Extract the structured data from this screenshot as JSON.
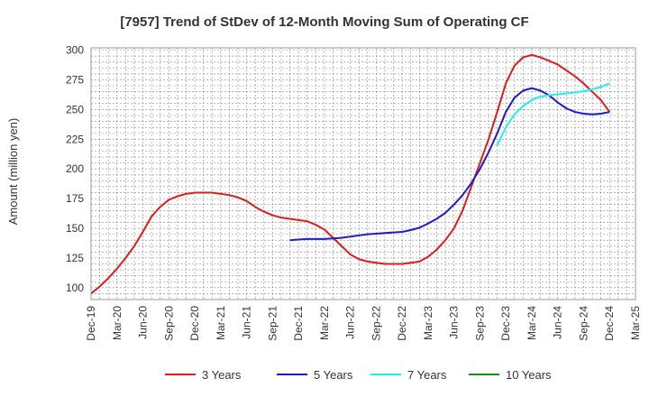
{
  "chart_data": {
    "type": "line",
    "title": "[7957]  Trend of StDev of 12-Month Moving Sum of Operating CF",
    "ylabel": "Amount (million yen)",
    "xlabel": "",
    "ylim": [
      90,
      302
    ],
    "yticks": [
      100,
      125,
      150,
      175,
      200,
      225,
      250,
      275,
      300
    ],
    "xlim": [
      "2019-12",
      "2025-03"
    ],
    "xticks": [
      "Dec-19",
      "Mar-20",
      "Jun-20",
      "Sep-20",
      "Dec-20",
      "Mar-21",
      "Jun-21",
      "Sep-21",
      "Dec-21",
      "Mar-22",
      "Jun-22",
      "Sep-22",
      "Dec-22",
      "Mar-23",
      "Jun-23",
      "Sep-23",
      "Dec-23",
      "Mar-24",
      "Jun-24",
      "Sep-24",
      "Dec-24",
      "Mar-25"
    ],
    "grid": true,
    "legend_position": "bottom",
    "series": [
      {
        "name": "3 Years",
        "color": "#dd1c1c",
        "points": [
          [
            "2019-12",
            95
          ],
          [
            "2020-01",
            101
          ],
          [
            "2020-02",
            108
          ],
          [
            "2020-03",
            116
          ],
          [
            "2020-04",
            125
          ],
          [
            "2020-05",
            135
          ],
          [
            "2020-06",
            147
          ],
          [
            "2020-07",
            160
          ],
          [
            "2020-08",
            168
          ],
          [
            "2020-09",
            174
          ],
          [
            "2020-10",
            177
          ],
          [
            "2020-11",
            179
          ],
          [
            "2020-12",
            180
          ],
          [
            "2021-01",
            180
          ],
          [
            "2021-02",
            180
          ],
          [
            "2021-03",
            179
          ],
          [
            "2021-04",
            178
          ],
          [
            "2021-05",
            176
          ],
          [
            "2021-06",
            173
          ],
          [
            "2021-07",
            168
          ],
          [
            "2021-08",
            164
          ],
          [
            "2021-09",
            161
          ],
          [
            "2021-10",
            159
          ],
          [
            "2021-11",
            158
          ],
          [
            "2021-12",
            157
          ],
          [
            "2022-01",
            156
          ],
          [
            "2022-02",
            153
          ],
          [
            "2022-03",
            149
          ],
          [
            "2022-04",
            142
          ],
          [
            "2022-05",
            135
          ],
          [
            "2022-06",
            128
          ],
          [
            "2022-07",
            124
          ],
          [
            "2022-08",
            122
          ],
          [
            "2022-09",
            121
          ],
          [
            "2022-10",
            120
          ],
          [
            "2022-11",
            120
          ],
          [
            "2022-12",
            120
          ],
          [
            "2023-01",
            121
          ],
          [
            "2023-02",
            122
          ],
          [
            "2023-03",
            126
          ],
          [
            "2023-04",
            132
          ],
          [
            "2023-05",
            140
          ],
          [
            "2023-06",
            150
          ],
          [
            "2023-07",
            165
          ],
          [
            "2023-08",
            185
          ],
          [
            "2023-09",
            205
          ],
          [
            "2023-10",
            225
          ],
          [
            "2023-11",
            248
          ],
          [
            "2023-12",
            272
          ],
          [
            "2024-01",
            287
          ],
          [
            "2024-02",
            294
          ],
          [
            "2024-03",
            296
          ],
          [
            "2024-04",
            294
          ],
          [
            "2024-05",
            291
          ],
          [
            "2024-06",
            288
          ],
          [
            "2024-07",
            283
          ],
          [
            "2024-08",
            278
          ],
          [
            "2024-09",
            272
          ],
          [
            "2024-10",
            265
          ],
          [
            "2024-11",
            258
          ],
          [
            "2024-12",
            248
          ]
        ]
      },
      {
        "name": "5 Years",
        "color": "#1c1cc8",
        "points": [
          [
            "2021-11",
            140
          ],
          [
            "2021-12",
            140.5
          ],
          [
            "2022-01",
            141
          ],
          [
            "2022-02",
            141
          ],
          [
            "2022-03",
            141
          ],
          [
            "2022-04",
            141.5
          ],
          [
            "2022-05",
            142
          ],
          [
            "2022-06",
            143
          ],
          [
            "2022-07",
            144
          ],
          [
            "2022-08",
            145
          ],
          [
            "2022-09",
            145.5
          ],
          [
            "2022-10",
            146
          ],
          [
            "2022-11",
            146.5
          ],
          [
            "2022-12",
            147
          ],
          [
            "2023-01",
            148.5
          ],
          [
            "2023-02",
            150.5
          ],
          [
            "2023-03",
            154
          ],
          [
            "2023-04",
            158
          ],
          [
            "2023-05",
            163
          ],
          [
            "2023-06",
            170
          ],
          [
            "2023-07",
            178
          ],
          [
            "2023-08",
            188
          ],
          [
            "2023-09",
            200
          ],
          [
            "2023-10",
            214
          ],
          [
            "2023-11",
            230
          ],
          [
            "2023-12",
            248
          ],
          [
            "2024-01",
            260
          ],
          [
            "2024-02",
            266
          ],
          [
            "2024-03",
            268
          ],
          [
            "2024-04",
            266
          ],
          [
            "2024-05",
            262
          ],
          [
            "2024-06",
            256
          ],
          [
            "2024-07",
            251
          ],
          [
            "2024-08",
            248
          ],
          [
            "2024-09",
            246.5
          ],
          [
            "2024-10",
            246
          ],
          [
            "2024-11",
            246.5
          ],
          [
            "2024-12",
            248
          ]
        ]
      },
      {
        "name": "7 Years",
        "color": "#22eeee",
        "points": [
          [
            "2023-11",
            220
          ],
          [
            "2023-12",
            235
          ],
          [
            "2024-01",
            246
          ],
          [
            "2024-02",
            253
          ],
          [
            "2024-03",
            258
          ],
          [
            "2024-04",
            261
          ],
          [
            "2024-05",
            262
          ],
          [
            "2024-06",
            263
          ],
          [
            "2024-07",
            263.5
          ],
          [
            "2024-08",
            264.5
          ],
          [
            "2024-09",
            265.5
          ],
          [
            "2024-10",
            267
          ],
          [
            "2024-11",
            269
          ],
          [
            "2024-12",
            272
          ]
        ]
      },
      {
        "name": "10 Years",
        "color": "#1c8c1c",
        "points": []
      }
    ]
  }
}
